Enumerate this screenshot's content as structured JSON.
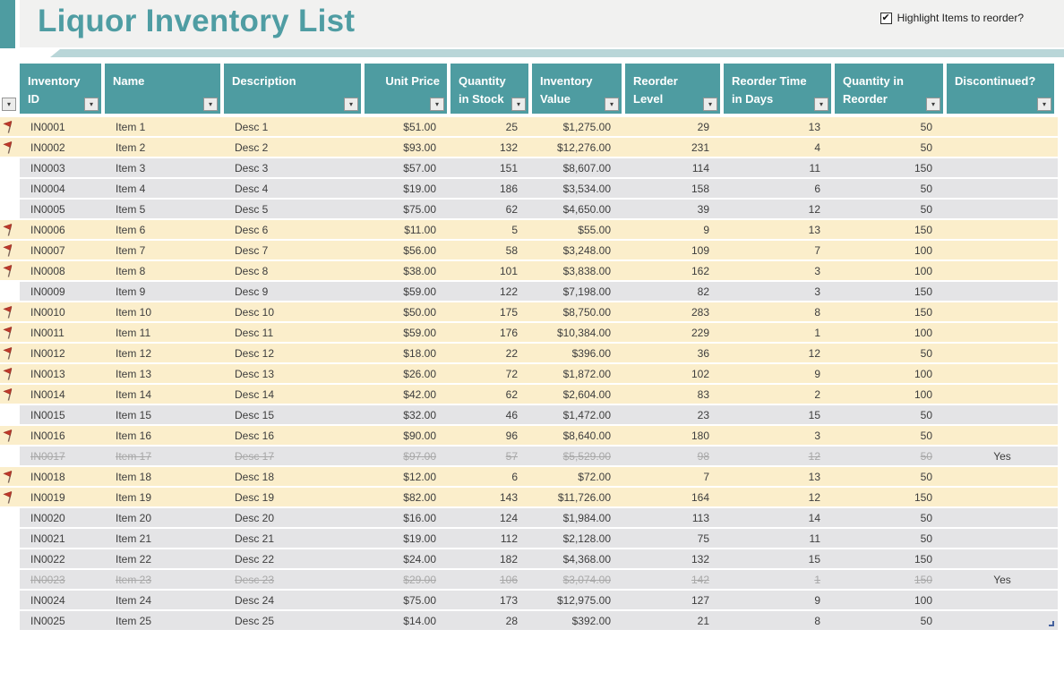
{
  "header": {
    "title": "Liquor Inventory List",
    "checkbox": {
      "label": "Highlight Items to reorder?",
      "checked": true
    }
  },
  "icons": {
    "filter_dropdown": "▾",
    "checkbox_check": "✔",
    "flag": "red-reorder-flag"
  },
  "colors": {
    "accent_teal": "#4E9CA1",
    "title_teal": "#4F9DA3",
    "light_teal_bar": "#B9D6D8",
    "banner_gray": "#F1F1F0",
    "row_gray": "#E4E4E6",
    "row_highlight_cream": "#FBEECB",
    "strike_text": "#A8A8A8",
    "flag_red": "#C0392B",
    "resize_handle_blue": "#44619E"
  },
  "table": {
    "columns": [
      {
        "key": "id",
        "label": "Inventory\nID",
        "align": "l"
      },
      {
        "key": "name",
        "label": "Name",
        "align": "l"
      },
      {
        "key": "desc",
        "label": "Description",
        "align": "l"
      },
      {
        "key": "unit_price",
        "label": "Unit Price",
        "align": "r",
        "header_align": "right"
      },
      {
        "key": "qty_stock",
        "label": "Quantity\nin Stock",
        "align": "r"
      },
      {
        "key": "inv_value",
        "label": "Inventory\nValue",
        "align": "r"
      },
      {
        "key": "reorder_level",
        "label": "Reorder\nLevel",
        "align": "r"
      },
      {
        "key": "reorder_days",
        "label": "Reorder Time\nin Days",
        "align": "r"
      },
      {
        "key": "qty_reorder",
        "label": "Quantity in\nReorder",
        "align": "r"
      },
      {
        "key": "discontinued",
        "label": "Discontinued?",
        "align": "c"
      }
    ],
    "rows": [
      {
        "id": "IN0001",
        "name": "Item 1",
        "desc": "Desc 1",
        "unit_price": "$51.00",
        "qty_stock": "25",
        "inv_value": "$1,275.00",
        "reorder_level": "29",
        "reorder_days": "13",
        "qty_reorder": "50",
        "discontinued": "",
        "flag": true,
        "highlight": true,
        "strike": false
      },
      {
        "id": "IN0002",
        "name": "Item 2",
        "desc": "Desc 2",
        "unit_price": "$93.00",
        "qty_stock": "132",
        "inv_value": "$12,276.00",
        "reorder_level": "231",
        "reorder_days": "4",
        "qty_reorder": "50",
        "discontinued": "",
        "flag": true,
        "highlight": true,
        "strike": false
      },
      {
        "id": "IN0003",
        "name": "Item 3",
        "desc": "Desc 3",
        "unit_price": "$57.00",
        "qty_stock": "151",
        "inv_value": "$8,607.00",
        "reorder_level": "114",
        "reorder_days": "11",
        "qty_reorder": "150",
        "discontinued": "",
        "flag": false,
        "highlight": false,
        "strike": false
      },
      {
        "id": "IN0004",
        "name": "Item 4",
        "desc": "Desc 4",
        "unit_price": "$19.00",
        "qty_stock": "186",
        "inv_value": "$3,534.00",
        "reorder_level": "158",
        "reorder_days": "6",
        "qty_reorder": "50",
        "discontinued": "",
        "flag": false,
        "highlight": false,
        "strike": false
      },
      {
        "id": "IN0005",
        "name": "Item 5",
        "desc": "Desc 5",
        "unit_price": "$75.00",
        "qty_stock": "62",
        "inv_value": "$4,650.00",
        "reorder_level": "39",
        "reorder_days": "12",
        "qty_reorder": "50",
        "discontinued": "",
        "flag": false,
        "highlight": false,
        "strike": false
      },
      {
        "id": "IN0006",
        "name": "Item 6",
        "desc": "Desc 6",
        "unit_price": "$11.00",
        "qty_stock": "5",
        "inv_value": "$55.00",
        "reorder_level": "9",
        "reorder_days": "13",
        "qty_reorder": "150",
        "discontinued": "",
        "flag": true,
        "highlight": true,
        "strike": false
      },
      {
        "id": "IN0007",
        "name": "Item 7",
        "desc": "Desc 7",
        "unit_price": "$56.00",
        "qty_stock": "58",
        "inv_value": "$3,248.00",
        "reorder_level": "109",
        "reorder_days": "7",
        "qty_reorder": "100",
        "discontinued": "",
        "flag": true,
        "highlight": true,
        "strike": false
      },
      {
        "id": "IN0008",
        "name": "Item 8",
        "desc": "Desc 8",
        "unit_price": "$38.00",
        "qty_stock": "101",
        "inv_value": "$3,838.00",
        "reorder_level": "162",
        "reorder_days": "3",
        "qty_reorder": "100",
        "discontinued": "",
        "flag": true,
        "highlight": true,
        "strike": false
      },
      {
        "id": "IN0009",
        "name": "Item 9",
        "desc": "Desc 9",
        "unit_price": "$59.00",
        "qty_stock": "122",
        "inv_value": "$7,198.00",
        "reorder_level": "82",
        "reorder_days": "3",
        "qty_reorder": "150",
        "discontinued": "",
        "flag": false,
        "highlight": false,
        "strike": false
      },
      {
        "id": "IN0010",
        "name": "Item 10",
        "desc": "Desc 10",
        "unit_price": "$50.00",
        "qty_stock": "175",
        "inv_value": "$8,750.00",
        "reorder_level": "283",
        "reorder_days": "8",
        "qty_reorder": "150",
        "discontinued": "",
        "flag": true,
        "highlight": true,
        "strike": false
      },
      {
        "id": "IN0011",
        "name": "Item 11",
        "desc": "Desc 11",
        "unit_price": "$59.00",
        "qty_stock": "176",
        "inv_value": "$10,384.00",
        "reorder_level": "229",
        "reorder_days": "1",
        "qty_reorder": "100",
        "discontinued": "",
        "flag": true,
        "highlight": true,
        "strike": false
      },
      {
        "id": "IN0012",
        "name": "Item 12",
        "desc": "Desc 12",
        "unit_price": "$18.00",
        "qty_stock": "22",
        "inv_value": "$396.00",
        "reorder_level": "36",
        "reorder_days": "12",
        "qty_reorder": "50",
        "discontinued": "",
        "flag": true,
        "highlight": true,
        "strike": false
      },
      {
        "id": "IN0013",
        "name": "Item 13",
        "desc": "Desc 13",
        "unit_price": "$26.00",
        "qty_stock": "72",
        "inv_value": "$1,872.00",
        "reorder_level": "102",
        "reorder_days": "9",
        "qty_reorder": "100",
        "discontinued": "",
        "flag": true,
        "highlight": true,
        "strike": false
      },
      {
        "id": "IN0014",
        "name": "Item 14",
        "desc": "Desc 14",
        "unit_price": "$42.00",
        "qty_stock": "62",
        "inv_value": "$2,604.00",
        "reorder_level": "83",
        "reorder_days": "2",
        "qty_reorder": "100",
        "discontinued": "",
        "flag": true,
        "highlight": true,
        "strike": false
      },
      {
        "id": "IN0015",
        "name": "Item 15",
        "desc": "Desc 15",
        "unit_price": "$32.00",
        "qty_stock": "46",
        "inv_value": "$1,472.00",
        "reorder_level": "23",
        "reorder_days": "15",
        "qty_reorder": "50",
        "discontinued": "",
        "flag": false,
        "highlight": false,
        "strike": false
      },
      {
        "id": "IN0016",
        "name": "Item 16",
        "desc": "Desc 16",
        "unit_price": "$90.00",
        "qty_stock": "96",
        "inv_value": "$8,640.00",
        "reorder_level": "180",
        "reorder_days": "3",
        "qty_reorder": "50",
        "discontinued": "",
        "flag": true,
        "highlight": true,
        "strike": false
      },
      {
        "id": "IN0017",
        "name": "Item 17",
        "desc": "Desc 17",
        "unit_price": "$97.00",
        "qty_stock": "57",
        "inv_value": "$5,529.00",
        "reorder_level": "98",
        "reorder_days": "12",
        "qty_reorder": "50",
        "discontinued": "Yes",
        "flag": false,
        "highlight": false,
        "strike": true
      },
      {
        "id": "IN0018",
        "name": "Item 18",
        "desc": "Desc 18",
        "unit_price": "$12.00",
        "qty_stock": "6",
        "inv_value": "$72.00",
        "reorder_level": "7",
        "reorder_days": "13",
        "qty_reorder": "50",
        "discontinued": "",
        "flag": true,
        "highlight": true,
        "strike": false
      },
      {
        "id": "IN0019",
        "name": "Item 19",
        "desc": "Desc 19",
        "unit_price": "$82.00",
        "qty_stock": "143",
        "inv_value": "$11,726.00",
        "reorder_level": "164",
        "reorder_days": "12",
        "qty_reorder": "150",
        "discontinued": "",
        "flag": true,
        "highlight": true,
        "strike": false
      },
      {
        "id": "IN0020",
        "name": "Item 20",
        "desc": "Desc 20",
        "unit_price": "$16.00",
        "qty_stock": "124",
        "inv_value": "$1,984.00",
        "reorder_level": "113",
        "reorder_days": "14",
        "qty_reorder": "50",
        "discontinued": "",
        "flag": false,
        "highlight": false,
        "strike": false
      },
      {
        "id": "IN0021",
        "name": "Item 21",
        "desc": "Desc 21",
        "unit_price": "$19.00",
        "qty_stock": "112",
        "inv_value": "$2,128.00",
        "reorder_level": "75",
        "reorder_days": "11",
        "qty_reorder": "50",
        "discontinued": "",
        "flag": false,
        "highlight": false,
        "strike": false
      },
      {
        "id": "IN0022",
        "name": "Item 22",
        "desc": "Desc 22",
        "unit_price": "$24.00",
        "qty_stock": "182",
        "inv_value": "$4,368.00",
        "reorder_level": "132",
        "reorder_days": "15",
        "qty_reorder": "150",
        "discontinued": "",
        "flag": false,
        "highlight": false,
        "strike": false
      },
      {
        "id": "IN0023",
        "name": "Item 23",
        "desc": "Desc 23",
        "unit_price": "$29.00",
        "qty_stock": "106",
        "inv_value": "$3,074.00",
        "reorder_level": "142",
        "reorder_days": "1",
        "qty_reorder": "150",
        "discontinued": "Yes",
        "flag": false,
        "highlight": false,
        "strike": true
      },
      {
        "id": "IN0024",
        "name": "Item 24",
        "desc": "Desc 24",
        "unit_price": "$75.00",
        "qty_stock": "173",
        "inv_value": "$12,975.00",
        "reorder_level": "127",
        "reorder_days": "9",
        "qty_reorder": "100",
        "discontinued": "",
        "flag": false,
        "highlight": false,
        "strike": false
      },
      {
        "id": "IN0025",
        "name": "Item 25",
        "desc": "Desc 25",
        "unit_price": "$14.00",
        "qty_stock": "28",
        "inv_value": "$392.00",
        "reorder_level": "21",
        "reorder_days": "8",
        "qty_reorder": "50",
        "discontinued": "",
        "flag": false,
        "highlight": false,
        "strike": false
      }
    ]
  }
}
